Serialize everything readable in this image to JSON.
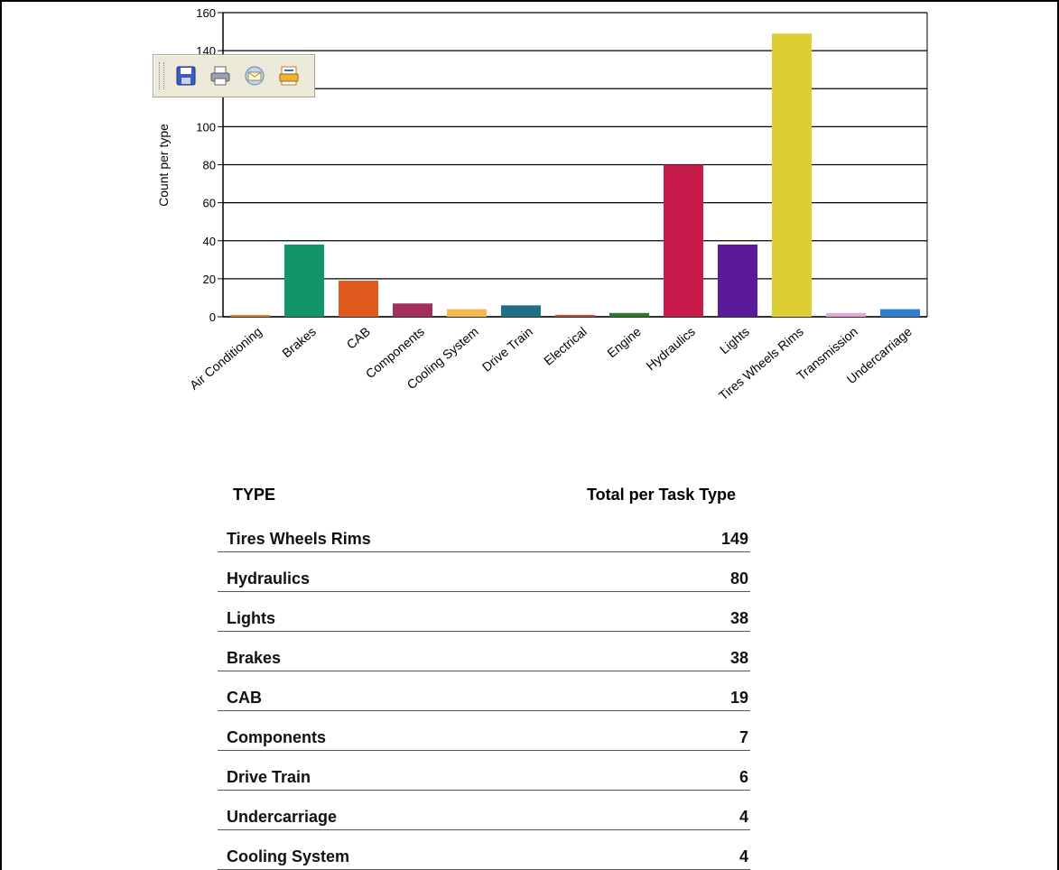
{
  "toolbar": {
    "buttons": [
      {
        "icon": "save-icon",
        "label": "Save"
      },
      {
        "icon": "print-icon",
        "label": "Print"
      },
      {
        "icon": "email-icon",
        "label": "Email"
      },
      {
        "icon": "print-preview-icon",
        "label": "Print Preview"
      }
    ]
  },
  "chart_data": {
    "type": "bar",
    "title": "",
    "xlabel": "",
    "ylabel": "Count per type",
    "ylim": [
      0,
      160
    ],
    "yticks": [
      0,
      20,
      40,
      60,
      80,
      100,
      120,
      140,
      160
    ],
    "grid": true,
    "categories": [
      "Air Conditioning",
      "Brakes",
      "CAB",
      "Components",
      "Cooling System",
      "Drive Train",
      "Electrical",
      "Engine",
      "Hydraulics",
      "Lights",
      "Tires Wheels Rims",
      "Transmission",
      "Undercarriage"
    ],
    "values": [
      1,
      38,
      19,
      7,
      4,
      6,
      1,
      2,
      80,
      38,
      149,
      2,
      4
    ],
    "colors": [
      "#e6842a",
      "#13956b",
      "#e05a1e",
      "#a3305a",
      "#f5b84c",
      "#1f6f86",
      "#c44a3a",
      "#2c7a2c",
      "#c71c4a",
      "#5b1a9a",
      "#dfce33",
      "#e3a6d6",
      "#2f7fcf"
    ]
  },
  "table": {
    "headers": {
      "type": "TYPE",
      "total": "Total per Task Type"
    },
    "rows": [
      {
        "type": "Tires Wheels Rims",
        "total": "149"
      },
      {
        "type": "Hydraulics",
        "total": "80"
      },
      {
        "type": "Lights",
        "total": "38"
      },
      {
        "type": "Brakes",
        "total": "38"
      },
      {
        "type": "CAB",
        "total": "19"
      },
      {
        "type": "Components",
        "total": "7"
      },
      {
        "type": "Drive Train",
        "total": "6"
      },
      {
        "type": "Undercarriage",
        "total": "4"
      },
      {
        "type": "Cooling System",
        "total": "4"
      }
    ]
  }
}
